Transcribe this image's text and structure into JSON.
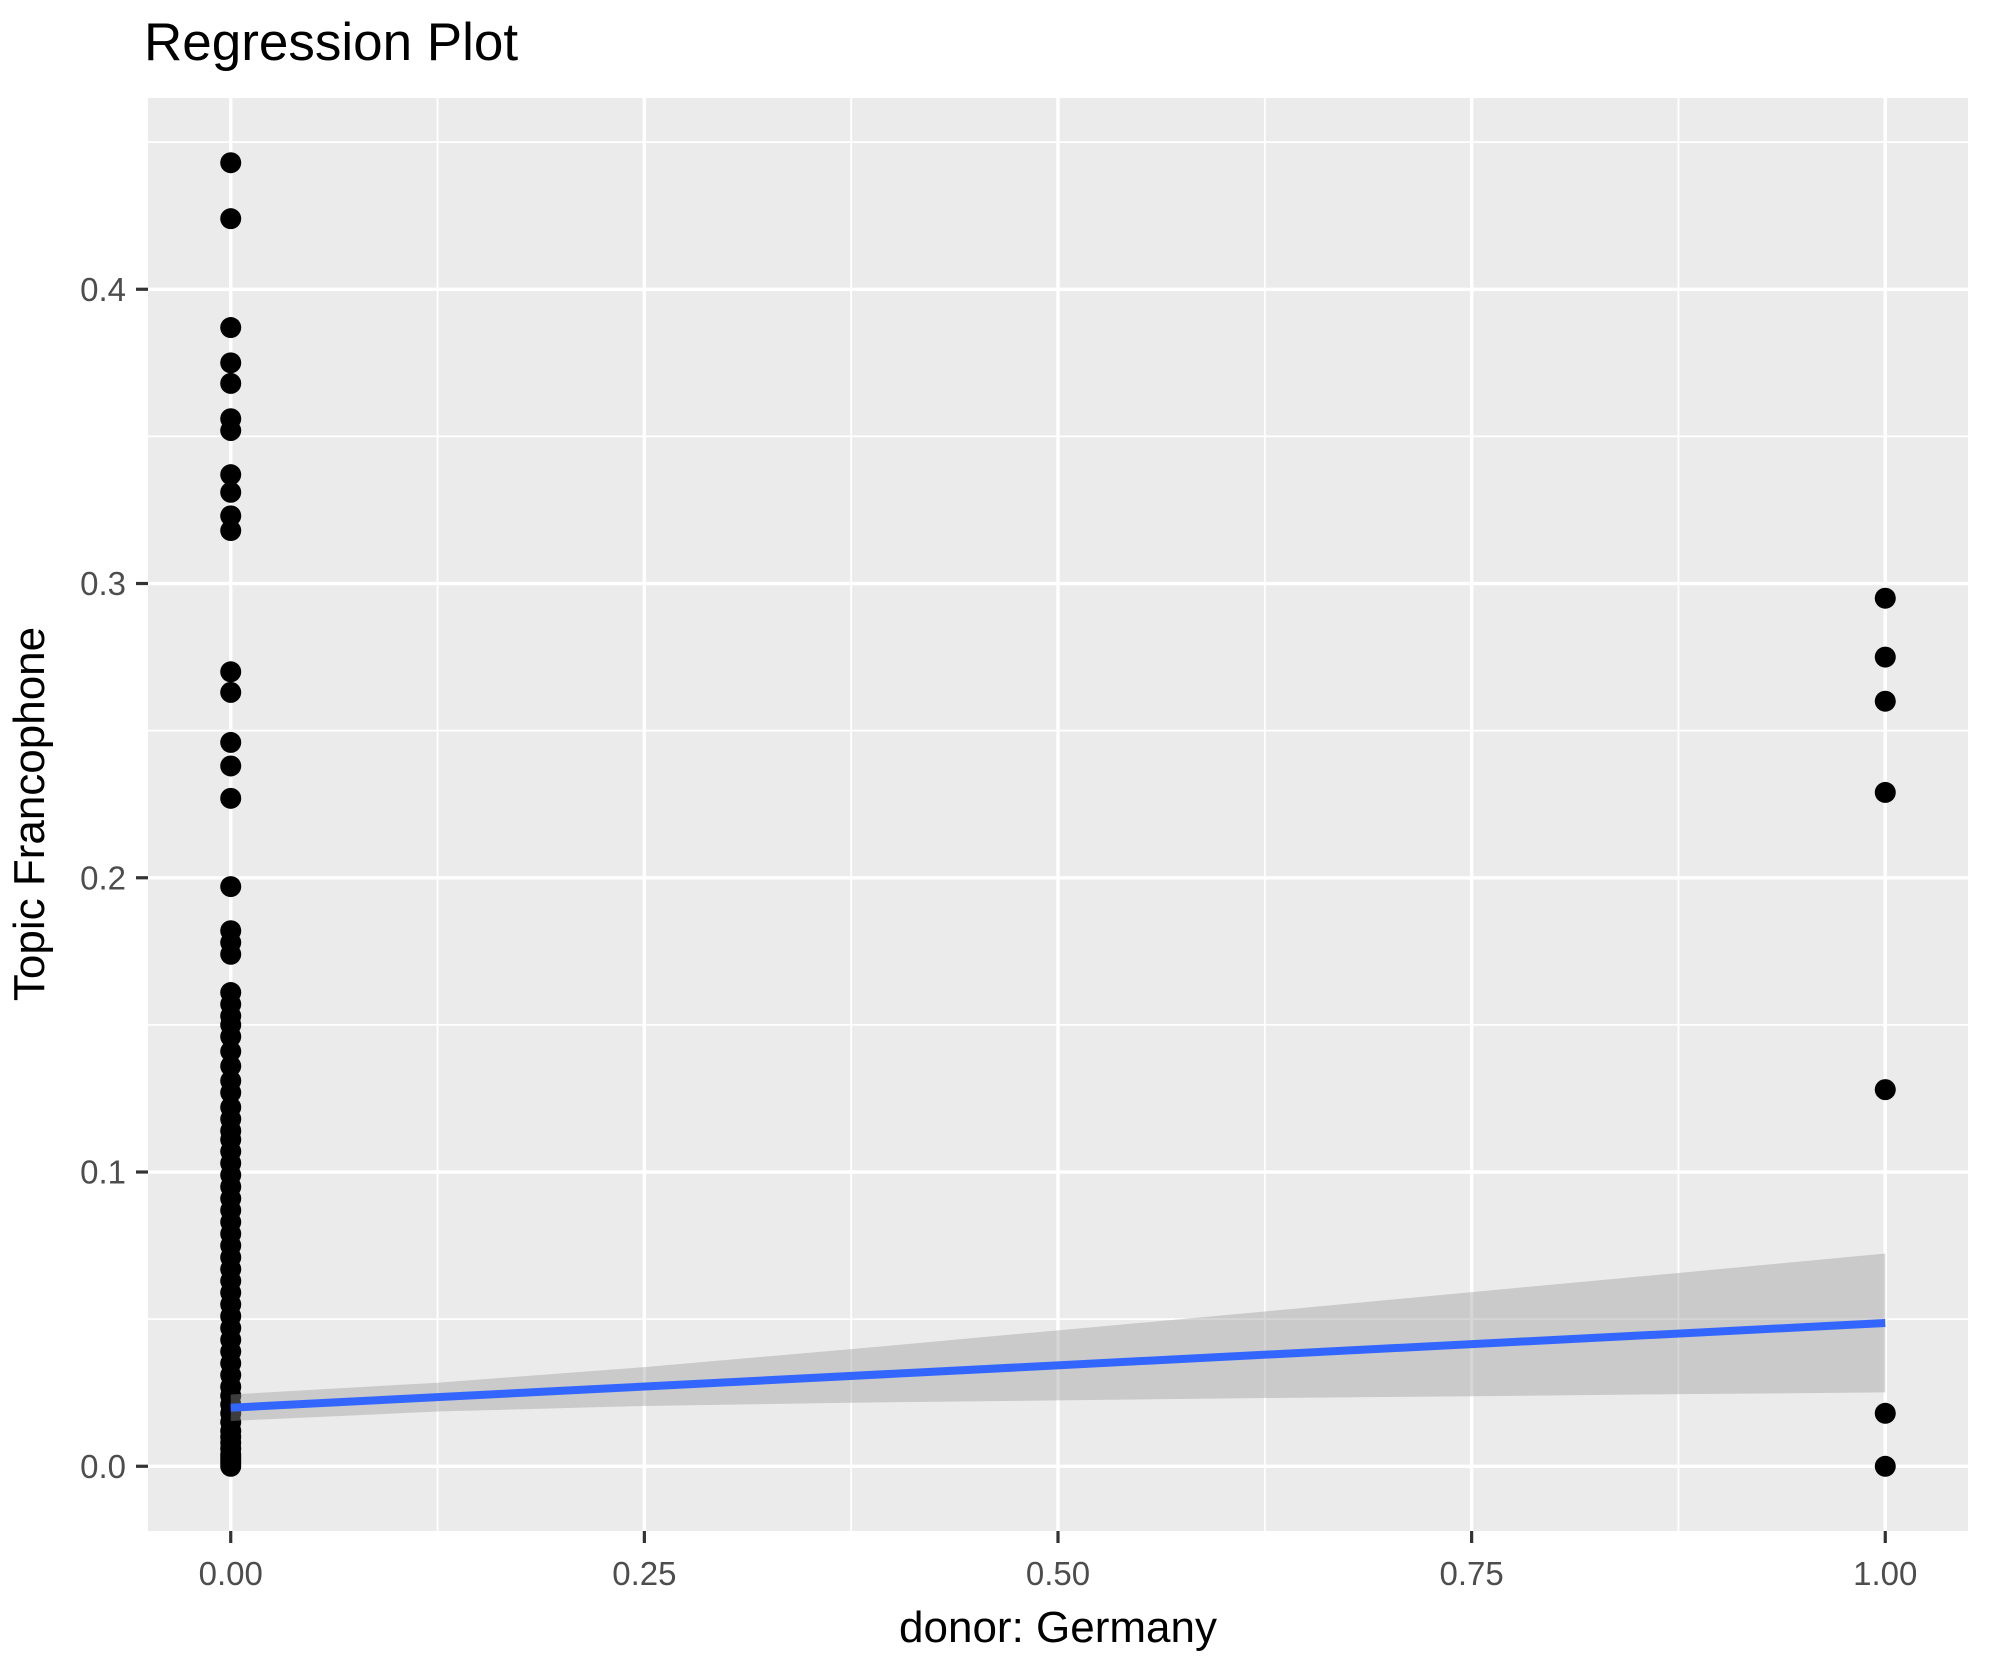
{
  "title": "Regression Plot",
  "x_axis": {
    "label": "donor: Germany",
    "tick_labels": [
      "0.00",
      "0.25",
      "0.50",
      "0.75",
      "1.00"
    ],
    "tick_values": [
      0,
      0.25,
      0.5,
      0.75,
      1.0
    ],
    "minor_ticks": [
      0.125,
      0.375,
      0.625,
      0.875
    ]
  },
  "y_axis": {
    "label": "Topic Francophone",
    "tick_labels": [
      "0.0",
      "0.1",
      "0.2",
      "0.3",
      "0.4"
    ],
    "tick_values": [
      0,
      0.1,
      0.2,
      0.3,
      0.4
    ],
    "minor_ticks": [
      0.05,
      0.15,
      0.25,
      0.35,
      0.45
    ]
  },
  "chart_data": {
    "type": "scatter",
    "title": "Regression Plot",
    "xlabel": "donor: Germany",
    "ylabel": "Topic Francophone",
    "xlim": [
      -0.05,
      1.05
    ],
    "ylim": [
      -0.022,
      0.465
    ],
    "grid": "on",
    "legend": "none",
    "series": [
      {
        "name": "donor: Germany = 0",
        "x": 0,
        "y": [
          0.443,
          0.424,
          0.387,
          0.375,
          0.368,
          0.356,
          0.352,
          0.337,
          0.331,
          0.323,
          0.318,
          0.27,
          0.263,
          0.246,
          0.238,
          0.227,
          0.197,
          0.182,
          0.178,
          0.174,
          0.161,
          0.157,
          0.153,
          0.15,
          0.146,
          0.141,
          0.136,
          0.131,
          0.127,
          0.122,
          0.118,
          0.114,
          0.111,
          0.107,
          0.103,
          0.099,
          0.095,
          0.091,
          0.087,
          0.083,
          0.079,
          0.075,
          0.071,
          0.067,
          0.063,
          0.059,
          0.055,
          0.051,
          0.047,
          0.043,
          0.039,
          0.035,
          0.031,
          0.027,
          0.024,
          0.021,
          0.018,
          0.015,
          0.012,
          0.01,
          0.008,
          0.006,
          0.004,
          0.003,
          0.002,
          0.001,
          0.0
        ]
      },
      {
        "name": "donor: Germany = 1",
        "x": 1,
        "y": [
          0.295,
          0.275,
          0.26,
          0.229,
          0.128,
          0.018,
          0.0
        ]
      }
    ],
    "regression_line": {
      "intercept": 0.0199,
      "slope": 0.0288,
      "x_start": 0,
      "x_end": 1
    },
    "confidence_band": {
      "x": [
        0,
        0.125,
        0.25,
        0.375,
        0.5,
        0.625,
        0.75,
        0.875,
        1.0
      ],
      "lower": [
        0.0154,
        0.0186,
        0.0205,
        0.0216,
        0.0224,
        0.0232,
        0.0238,
        0.0245,
        0.0251
      ],
      "upper": [
        0.0244,
        0.0284,
        0.0337,
        0.0398,
        0.0462,
        0.0526,
        0.0592,
        0.0657,
        0.0723
      ]
    },
    "colors": {
      "point": "#000000",
      "line": "#3366FF",
      "band_fill": "#999999",
      "band_opacity": 0.4,
      "panel_background": "#EBEBEB",
      "gridline": "#FFFFFF",
      "tick_mark": "#333333",
      "tick_label": "#4D4D4D",
      "text": "#000000",
      "figure_background": "#FFFFFF"
    }
  }
}
